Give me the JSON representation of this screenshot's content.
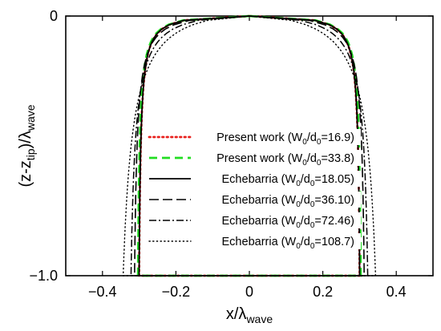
{
  "chart_data": {
    "type": "line",
    "title": "",
    "xlabel": {
      "base": "x/λ",
      "sub": "wave"
    },
    "ylabel": {
      "pre": "(z-z",
      "sub1": "tip",
      "mid": ")/λ",
      "sub2": "wave"
    },
    "xlim": [
      -0.5,
      0.5
    ],
    "ylim": [
      -1.0,
      0
    ],
    "xticks": [
      {
        "value": -0.4,
        "label": "−0.4"
      },
      {
        "value": -0.2,
        "label": "−0.2"
      },
      {
        "value": 0,
        "label": "0"
      },
      {
        "value": 0.2,
        "label": "0.2"
      },
      {
        "value": 0.4,
        "label": "0.4"
      }
    ],
    "yticks": [
      {
        "value": 0,
        "label": "0"
      },
      {
        "value": -1.0,
        "label": "−1.0"
      }
    ],
    "grid": false,
    "legend_position": "inside-center",
    "series": [
      {
        "name": {
          "pre": "Present work (W",
          "s1": "0",
          "mid": "/d",
          "s2": "0",
          "post": "=16.9)"
        },
        "color": "#e8201c",
        "dash": "1.5,4",
        "width": 2.8,
        "linecap": "round",
        "width_half": 0.305,
        "root_depth": 0.0008
      },
      {
        "name": {
          "pre": "Present work (W",
          "s1": "0",
          "mid": "/d",
          "s2": "0",
          "post": "=33.8)"
        },
        "color": "#22dd22",
        "dash": "10,6",
        "width": 2.8,
        "linecap": "butt",
        "width_half": 0.308,
        "root_depth": 0.0008
      },
      {
        "name": {
          "pre": "Echebarria (W",
          "s1": "0",
          "mid": "/d",
          "s2": "0",
          "post": "=18.05)"
        },
        "color": "#000000",
        "dash": "",
        "width": 1.8,
        "linecap": "butt",
        "width_half": 0.305,
        "root_depth": 0.0008
      },
      {
        "name": {
          "pre": "Echebarria (W",
          "s1": "0",
          "mid": "/d",
          "s2": "0",
          "post": "=36.10)"
        },
        "color": "#000000",
        "dash": "12,5",
        "width": 1.6,
        "linecap": "butt",
        "width_half": 0.32,
        "root_depth": 0.0012
      },
      {
        "name": {
          "pre": "Echebarria (W",
          "s1": "0",
          "mid": "/d",
          "s2": "0",
          "post": "=72.46)"
        },
        "color": "#000000",
        "dash": "9,3,2,3",
        "width": 1.5,
        "linecap": "butt",
        "width_half": 0.335,
        "root_depth": 0.002
      },
      {
        "name": {
          "pre": "Echebarria (W",
          "s1": "0",
          "mid": "/d",
          "s2": "0",
          "post": "=108.7)"
        },
        "color": "#000000",
        "dash": "1.2,3.5",
        "width": 1.4,
        "linecap": "round",
        "width_half": 0.37,
        "root_depth": 0.004
      }
    ]
  }
}
